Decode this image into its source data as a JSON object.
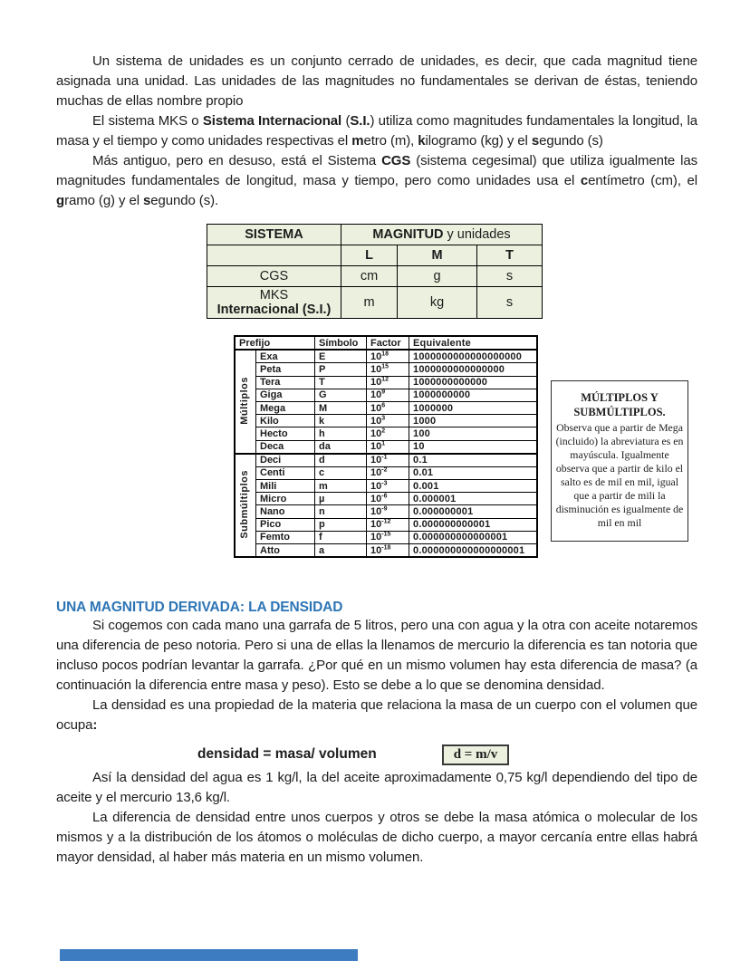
{
  "colors": {
    "heading_blue": "#2E75B6",
    "table_green": "#EBF1DE",
    "bottom_bar_blue": "#3E7CC1"
  },
  "content": {
    "p1": [
      {
        "t": "Un sistema de unidades es un conjunto cerrado de unidades, es decir, que cada magnitud tiene asignada una unidad. Las unidades de las magnitudes no fundamentales se derivan de éstas, teniendo muchas de ellas nombre propio"
      }
    ],
    "p2": [
      {
        "t": "El sistema MKS o "
      },
      {
        "t": "Sistema Internacional",
        "b": 1
      },
      {
        "t": " ("
      },
      {
        "t": "S.I.",
        "b": 1
      },
      {
        "t": ") utiliza como magnitudes fundamentales la longitud, la masa y el tiempo y como unidades respectivas el "
      },
      {
        "t": "m",
        "b": 1
      },
      {
        "t": "etro (m), "
      },
      {
        "t": "k",
        "b": 1
      },
      {
        "t": "ilogramo (kg) y el "
      },
      {
        "t": "s",
        "b": 1
      },
      {
        "t": "egundo (s)"
      }
    ],
    "p3": [
      {
        "t": "Más antiguo, pero en desuso, está el Sistema "
      },
      {
        "t": "CGS",
        "b": 1
      },
      {
        "t": " (sistema cegesimal) que utiliza igualmente las magnitudes fundamentales de longitud, masa y tiempo, pero como unidades usa el "
      },
      {
        "t": "c",
        "b": 1
      },
      {
        "t": "entímetro (cm), el "
      },
      {
        "t": "g",
        "b": 1
      },
      {
        "t": "ramo (g) y el "
      },
      {
        "t": "s",
        "b": 1
      },
      {
        "t": "egundo (s)."
      }
    ],
    "section_heading": "UNA MAGNITUD DERIVADA: LA DENSIDAD",
    "p4": [
      {
        "t": "Si cogemos con cada mano una garrafa de 5 litros, pero una con agua y la otra con aceite notaremos una diferencia de peso notoria. Pero si una de ellas la llenamos de mercurio la diferencia es tan notoria que incluso pocos podrían levantar la garrafa. ¿Por qué en un mismo volumen hay esta diferencia de masa? (a continuación  la diferencia entre masa y peso). Esto se debe a lo que se denomina densidad."
      }
    ],
    "p5": [
      {
        "t": "La densidad es una propiedad de la materia que relaciona la masa de un cuerpo con el volumen que ocupa"
      },
      {
        "t": ":",
        "b": 1
      }
    ],
    "formula_label": "densidad = masa/ volumen",
    "formula_box": "d = m/v",
    "p6": [
      {
        "t": "Así la densidad del agua es 1 kg/l, la del aceite aproximadamente 0,75 kg/l dependiendo del tipo de aceite y el mercurio 13,6 kg/l."
      }
    ],
    "p7": [
      {
        "t": "La diferencia de densidad entre unos cuerpos y otros se debe la masa atómica o molecular de los mismos y a la distribución de los átomos o moléculas de dicho cuerpo, a mayor cercanía entre ellas habrá mayor densidad, al haber más materia en un mismo volumen."
      }
    ]
  },
  "systems_table": {
    "header_sistema": "SISTEMA",
    "header_magnitud": [
      {
        "t": "MAGNITUD",
        "b": 1
      },
      {
        "t": " y unidades"
      }
    ],
    "subheaders": [
      "L",
      "M",
      "T"
    ],
    "row_cgs": {
      "name": "CGS",
      "l": "cm",
      "m": "g",
      "t": "s"
    },
    "row_mks": {
      "name_line1": "MKS",
      "name_line2": "Internacional (S.I.)",
      "l": "m",
      "m": "kg",
      "t": "s"
    }
  },
  "prefix_table": {
    "headers": [
      "Prefijo",
      "Símbolo",
      "Factor",
      "Equivalente"
    ],
    "factor_base": "10",
    "groups": [
      {
        "label": "Múltiplos",
        "rows": [
          [
            "Exa",
            "E",
            "18",
            "1000000000000000000"
          ],
          [
            "Peta",
            "P",
            "15",
            "1000000000000000"
          ],
          [
            "Tera",
            "T",
            "12",
            "1000000000000"
          ],
          [
            "Giga",
            "G",
            "9",
            "1000000000"
          ],
          [
            "Mega",
            "M",
            "6",
            "1000000"
          ],
          [
            "Kilo",
            "k",
            "3",
            "1000"
          ],
          [
            "Hecto",
            "h",
            "2",
            "100"
          ],
          [
            "Deca",
            "da",
            "1",
            "10"
          ]
        ]
      },
      {
        "label": "Submúltiplos",
        "rows": [
          [
            "Deci",
            "d",
            "-1",
            "0.1"
          ],
          [
            "Centi",
            "c",
            "-2",
            "0.01"
          ],
          [
            "Mili",
            "m",
            "-3",
            "0.001"
          ],
          [
            "Micro",
            "µ",
            "-6",
            "0.000001"
          ],
          [
            "Nano",
            "n",
            "-9",
            "0.000000001"
          ],
          [
            "Pico",
            "p",
            "-12",
            "0.000000000001"
          ],
          [
            "Femto",
            "f",
            "-15",
            "0.000000000000001"
          ],
          [
            "Atto",
            "a",
            "-18",
            "0.000000000000000001"
          ]
        ]
      }
    ]
  },
  "note_box": {
    "title": "MÚLTIPLOS Y SUBMÚLTIPLOS.",
    "body": "Observa que a partir de Mega (incluido) la abreviatura es en mayúscula. Igualmente observa que a partir de kilo el salto es de mil en mil, igual que a partir de mili la disminución es igualmente de mil en mil"
  }
}
